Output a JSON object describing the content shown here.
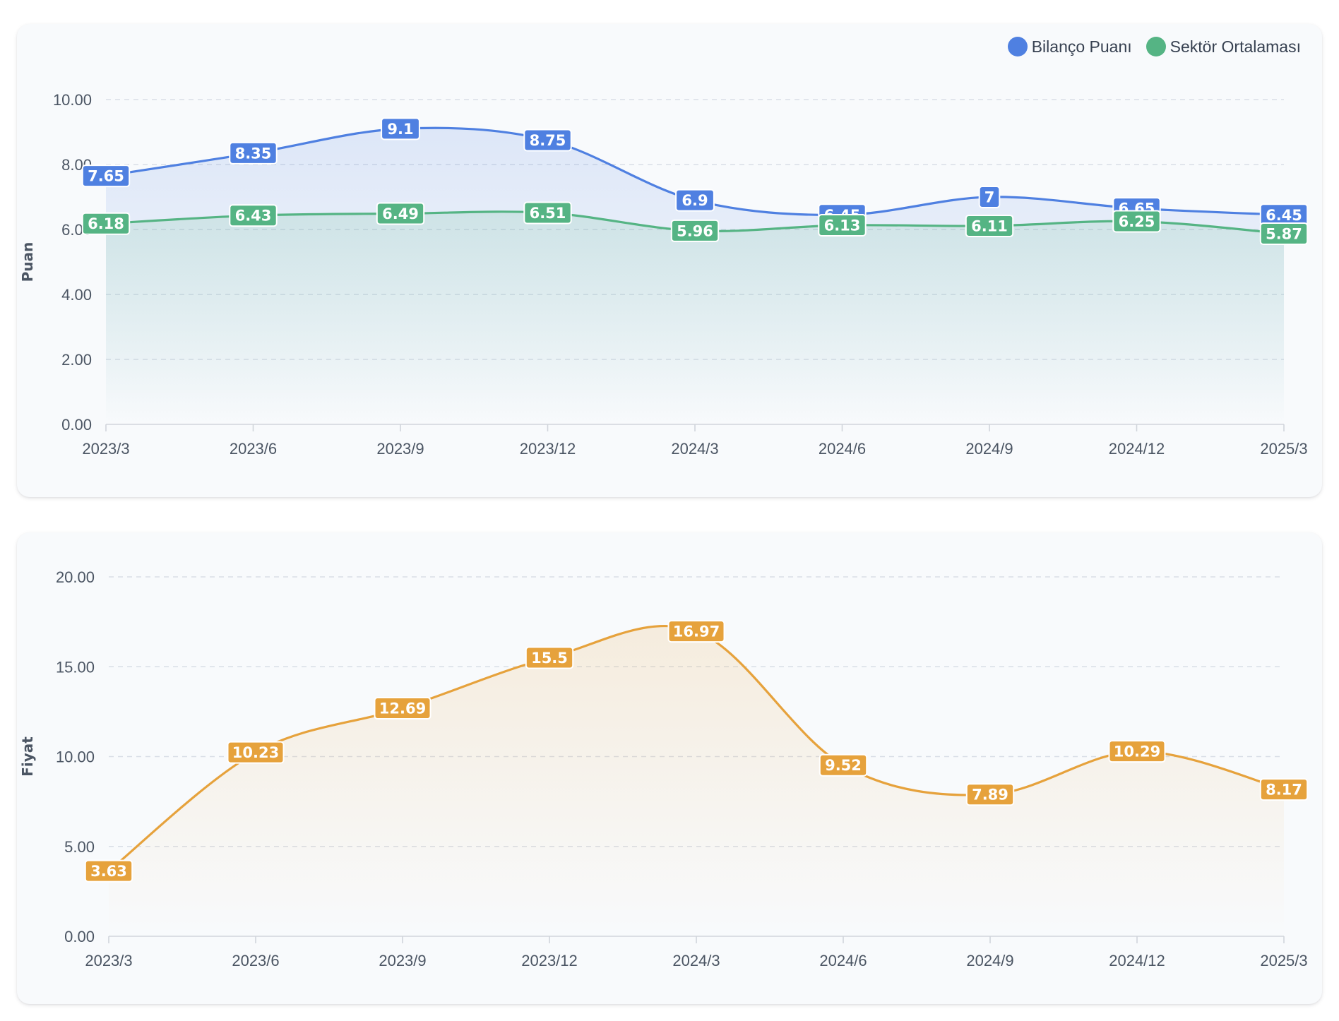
{
  "chart_data": [
    {
      "type": "area",
      "categories": [
        "2023/3",
        "2023/6",
        "2023/9",
        "2023/12",
        "2024/3",
        "2024/6",
        "2024/9",
        "2024/12",
        "2025/3"
      ],
      "ylabel": "Puan",
      "ylim": [
        0,
        10
      ],
      "yticks": [
        "0.00",
        "2.00",
        "4.00",
        "6.00",
        "8.00",
        "10.00"
      ],
      "grid": true,
      "legend_position": "top-right",
      "series": [
        {
          "name": "Bilanço Puanı",
          "color": "#4f80e1",
          "values": [
            7.65,
            8.35,
            9.1,
            8.75,
            6.9,
            6.45,
            7,
            6.65,
            6.45
          ],
          "labels": [
            "7.65",
            "8.35",
            "9.1",
            "8.75",
            "6.9",
            "6.45",
            "7",
            "6.65",
            "6.45"
          ]
        },
        {
          "name": "Sektör Ortalaması",
          "color": "#55b484",
          "values": [
            6.18,
            6.43,
            6.49,
            6.51,
            5.96,
            6.13,
            6.11,
            6.25,
            5.87
          ],
          "labels": [
            "6.18",
            "6.43",
            "6.49",
            "6.51",
            "5.96",
            "6.13",
            "6.11",
            "6.25",
            "5.87"
          ]
        }
      ]
    },
    {
      "type": "area",
      "categories": [
        "2023/3",
        "2023/6",
        "2023/9",
        "2023/12",
        "2024/3",
        "2024/6",
        "2024/9",
        "2024/12",
        "2025/3"
      ],
      "ylabel": "Fiyat",
      "ylim": [
        0,
        20
      ],
      "yticks": [
        "0.00",
        "5.00",
        "10.00",
        "15.00",
        "20.00"
      ],
      "grid": true,
      "series": [
        {
          "color": "#e6a23c",
          "values": [
            3.63,
            10.23,
            12.69,
            15.5,
            16.97,
            9.52,
            7.89,
            10.29,
            8.17
          ],
          "labels": [
            "3.63",
            "10.23",
            "12.69",
            "15.5",
            "16.97",
            "9.52",
            "7.89",
            "10.29",
            "8.17"
          ]
        }
      ]
    }
  ]
}
